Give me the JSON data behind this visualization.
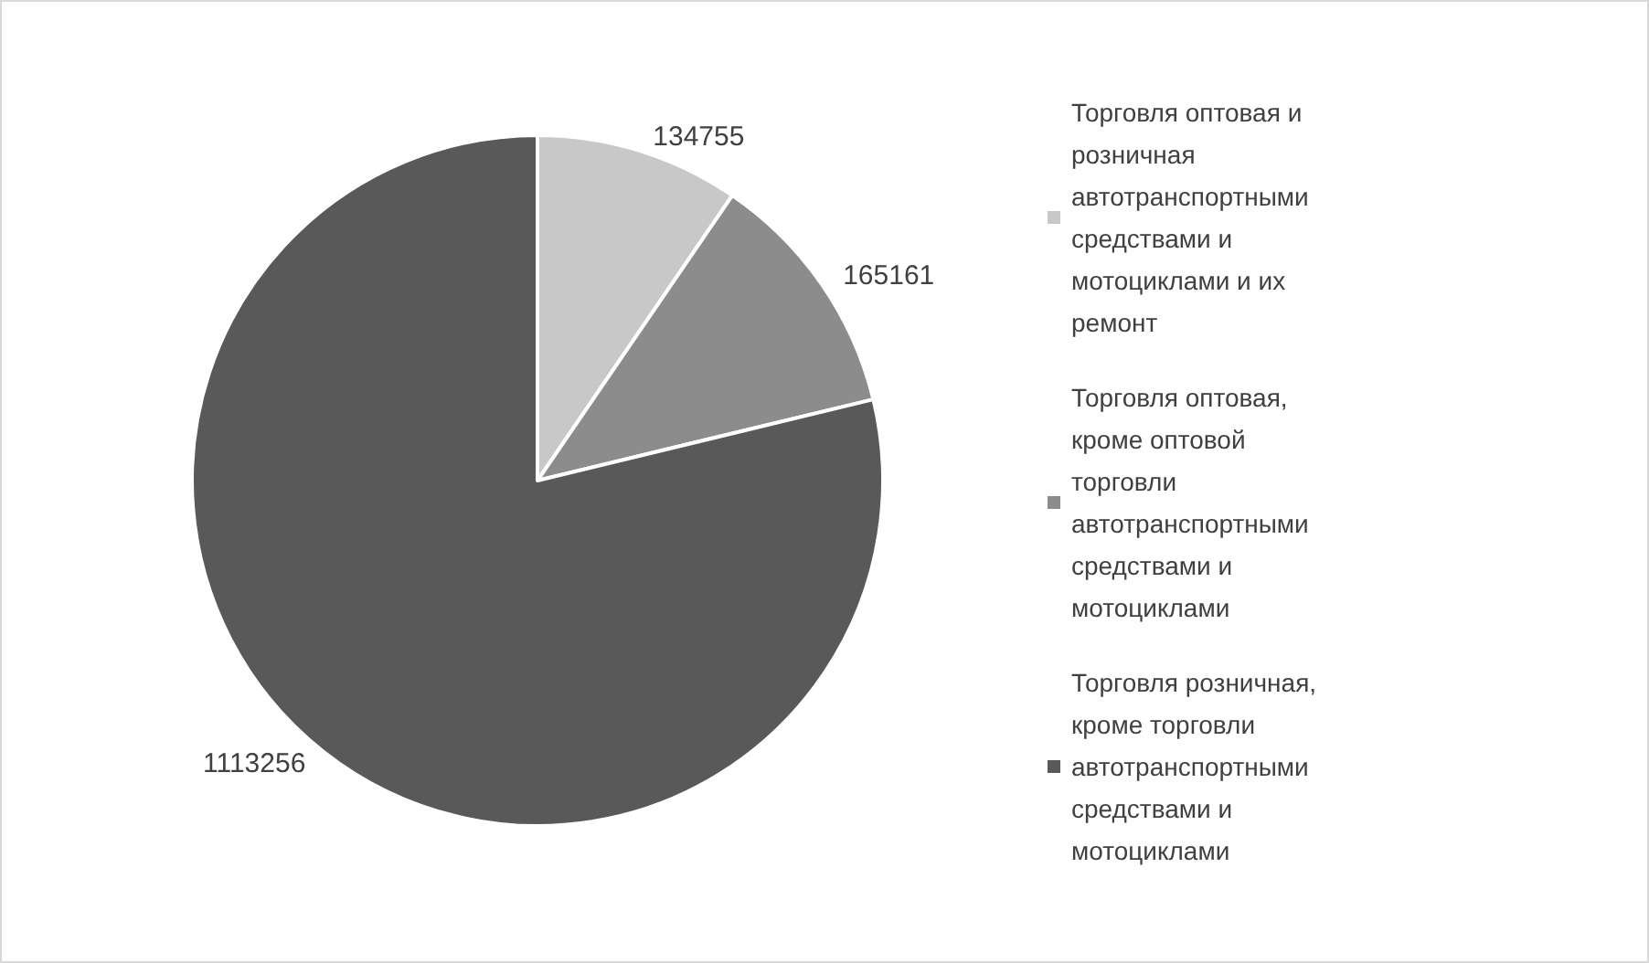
{
  "chart_data": {
    "type": "pie",
    "categories": [
      "Торговля оптовая и розничная автотранспортными средствами и мотоциклами и их ремонт",
      "Торговля оптовая, кроме оптовой торговли автотранспортными средствами и мотоциклами",
      "Торговля розничная, кроме торговли автотранспортными средствами и мотоциклами"
    ],
    "values": [
      134755,
      165161,
      1113256
    ],
    "colors": [
      "#c8c8c8",
      "#8c8c8c",
      "#595959"
    ],
    "data_labels": true,
    "legend": "right"
  }
}
